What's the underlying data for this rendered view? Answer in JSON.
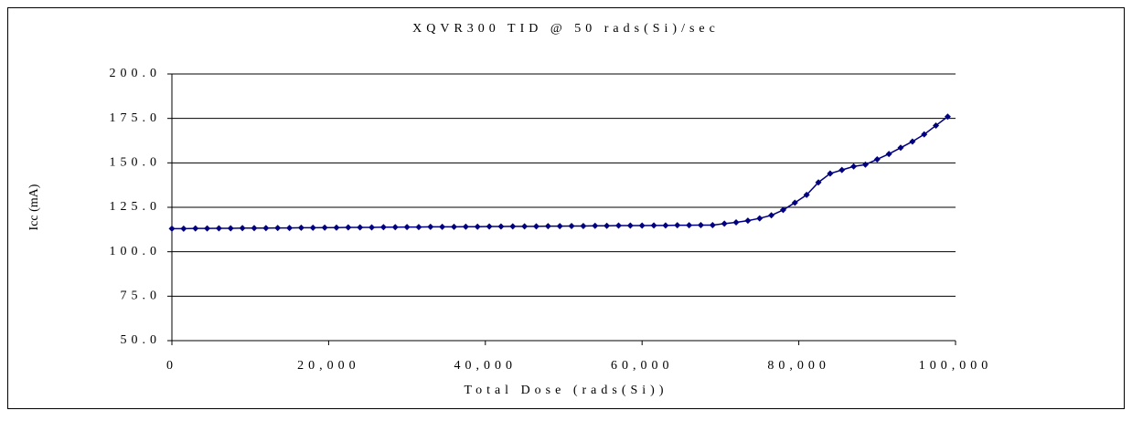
{
  "chart_data": {
    "type": "line",
    "title": "XQVR300 TID @ 50 rads(Si)/sec",
    "x_label": "Total Dose (rads(Si))",
    "y_label": "Icc (mA)",
    "x": [
      0,
      1500,
      3000,
      4500,
      6000,
      7500,
      9000,
      10500,
      12000,
      13500,
      15000,
      16500,
      18000,
      19500,
      21000,
      22500,
      24000,
      25500,
      27000,
      28500,
      30000,
      31500,
      33000,
      34500,
      36000,
      37500,
      39000,
      40500,
      42000,
      43500,
      45000,
      46500,
      48000,
      49500,
      51000,
      52500,
      54000,
      55500,
      57000,
      58500,
      60000,
      61500,
      63000,
      64500,
      66000,
      67500,
      69000,
      70500,
      72000,
      73500,
      75000,
      76500,
      78000,
      79500,
      81000,
      82500,
      84000,
      85500,
      87000,
      88500,
      90000,
      91500,
      93000,
      94500,
      96000,
      97500,
      99000
    ],
    "series": [
      {
        "name": "Icc",
        "color": "#000080",
        "values": [
          113.0,
          113.0,
          113.1,
          113.1,
          113.2,
          113.2,
          113.3,
          113.3,
          113.3,
          113.4,
          113.4,
          113.5,
          113.5,
          113.6,
          113.6,
          113.7,
          113.7,
          113.7,
          113.8,
          113.8,
          113.9,
          113.9,
          114.0,
          114.0,
          114.0,
          114.1,
          114.1,
          114.2,
          114.2,
          114.3,
          114.3,
          114.3,
          114.4,
          114.4,
          114.5,
          114.5,
          114.6,
          114.6,
          114.7,
          114.7,
          114.7,
          114.8,
          114.8,
          114.9,
          114.9,
          115.0,
          115.0,
          115.8,
          116.5,
          117.5,
          118.8,
          120.5,
          123.5,
          127.6,
          132,
          139,
          144,
          146,
          148,
          149,
          152,
          155,
          158.5,
          162,
          166,
          171,
          176
        ]
      }
    ],
    "xlim": [
      0,
      100000
    ],
    "xticks": [
      0,
      {
        "value": 20000,
        "label": "20,000"
      },
      {
        "value": 40000,
        "label": "40,000"
      },
      {
        "value": 60000,
        "label": "60,000"
      },
      {
        "value": 80000,
        "label": "80,000"
      },
      {
        "value": 100000,
        "label": "100,000"
      }
    ],
    "ylim": [
      50,
      200
    ],
    "yticks": [
      {
        "value": 50,
        "label": "50.0"
      },
      {
        "value": 75,
        "label": "75.0"
      },
      {
        "value": 100,
        "label": "100.0"
      },
      {
        "value": 125,
        "label": "125.0"
      },
      {
        "value": 150,
        "label": "150.0"
      },
      {
        "value": 175,
        "label": "175.0"
      },
      {
        "value": 200,
        "label": "200.0"
      }
    ],
    "grid": true
  }
}
